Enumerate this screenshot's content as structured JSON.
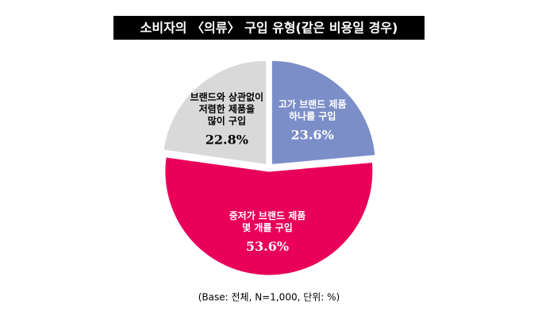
{
  "chart_data": {
    "type": "pie",
    "title": "소비자의 〈의류〉 구입 유형(같은 비용일 경우)",
    "categories": [
      [
        "고가 브랜드 제품",
        "하나를 구입"
      ],
      [
        "중저가 브랜드 제품",
        "몇 개를 구입"
      ],
      [
        "브랜드와 상관없이",
        "저렴한 제품을",
        "많이 구입"
      ]
    ],
    "values": [
      23.6,
      53.6,
      22.8
    ],
    "value_labels": [
      "23.6%",
      "53.6%",
      "22.8%"
    ],
    "colors": [
      "#7b8ec8",
      "#e8005a",
      "#d9d9d9"
    ],
    "note": "(Base: 전체, N=1,000, 단위: %)"
  }
}
